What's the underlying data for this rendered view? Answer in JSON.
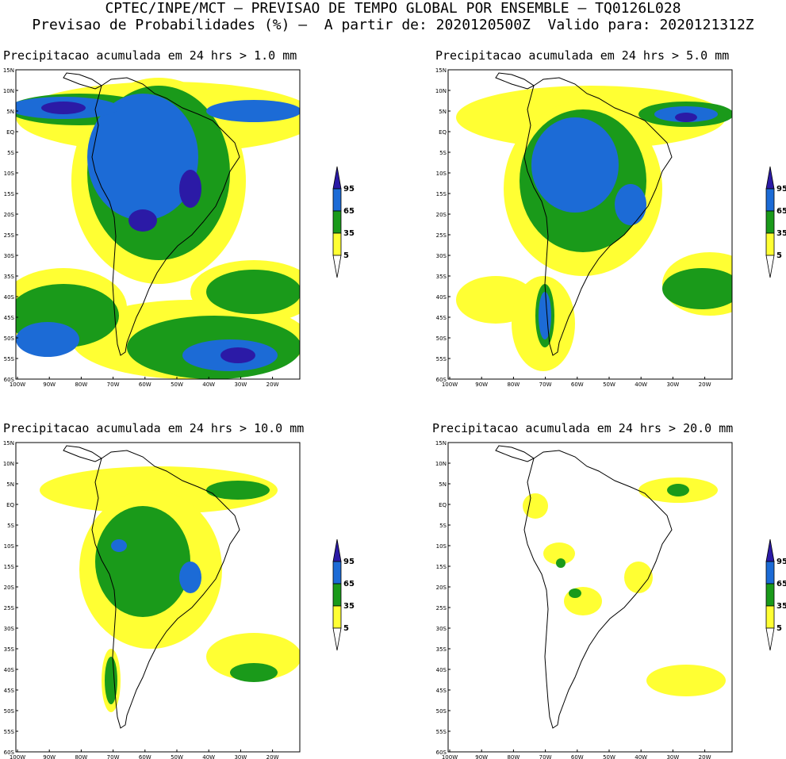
{
  "header": {
    "line1": "CPTEC/INPE/MCT – PREVISAO DE TEMPO GLOBAL POR ENSEMBLE – TQ0126L028",
    "line2": "Previsao de Probabilidades (%) –  A partir de: 2020120500Z  Valido para: 2020121312Z"
  },
  "panels": [
    {
      "title": "Precipitacao acumulada em 24 hrs > 1.0 mm"
    },
    {
      "title": "Precipitacao acumulada em 24 hrs > 5.0 mm"
    },
    {
      "title": "Precipitacao acumulada em 24 hrs > 10.0 mm"
    },
    {
      "title": "Precipitacao acumulada em 24 hrs > 20.0 mm"
    }
  ],
  "lat_labels": [
    "15N",
    "10N",
    "5N",
    "EQ",
    "5S",
    "10S",
    "15S",
    "20S",
    "25S",
    "30S",
    "35S",
    "40S",
    "45S",
    "50S",
    "55S",
    "60S"
  ],
  "lon_labels": [
    "100W",
    "90W",
    "80W",
    "70W",
    "60W",
    "50W",
    "40W",
    "30W",
    "20W"
  ],
  "colorbar": {
    "labels": [
      "95",
      "65",
      "35",
      "5"
    ],
    "colors": {
      "c95": "#2b1aa6",
      "c65": "#1c6bd6",
      "c35": "#1a9a1a",
      "c5": "#ffff33"
    }
  }
}
